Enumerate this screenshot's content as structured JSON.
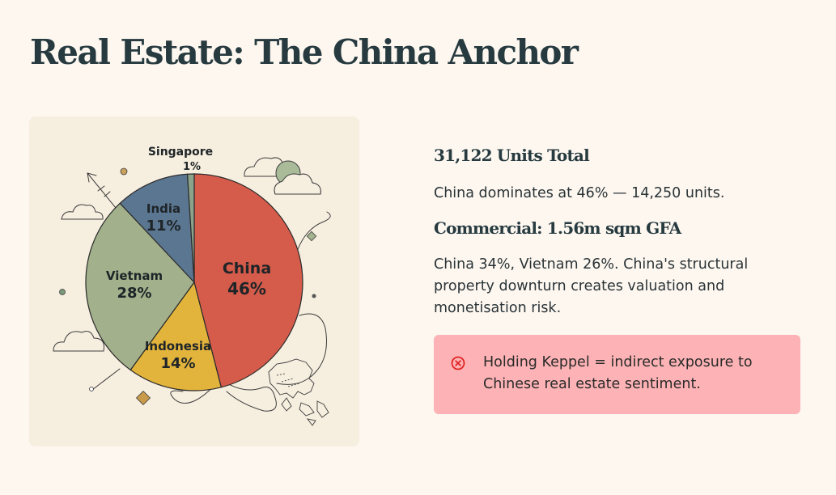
{
  "page": {
    "title": "Real Estate: The China Anchor"
  },
  "chart_data": {
    "type": "pie",
    "slices": [
      {
        "label": "China",
        "value": 46,
        "value_label": "46%",
        "color": "#d55b4b"
      },
      {
        "label": "Indonesia",
        "value": 14,
        "value_label": "14%",
        "color": "#e3b43c"
      },
      {
        "label": "Vietnam",
        "value": 28,
        "value_label": "28%",
        "color": "#a2b08c"
      },
      {
        "label": "India",
        "value": 11,
        "value_label": "11%",
        "color": "#5b7691"
      },
      {
        "label": "Singapore",
        "value": 1,
        "value_label": "1%",
        "color": "#8ba38a"
      }
    ]
  },
  "summary": {
    "units_heading": "31,122 Units Total",
    "units_text": "China dominates at 46% — 14,250 units.",
    "commercial_heading": "Commercial: 1.56m sqm GFA",
    "commercial_text": "China 34%, Vietnam 26%. China's structural property downturn creates valuation and monetisation risk."
  },
  "alert": {
    "icon": "x-circle-icon",
    "color": "#e02424",
    "text": "Holding Keppel = indirect exposure to Chinese real estate sentiment."
  }
}
